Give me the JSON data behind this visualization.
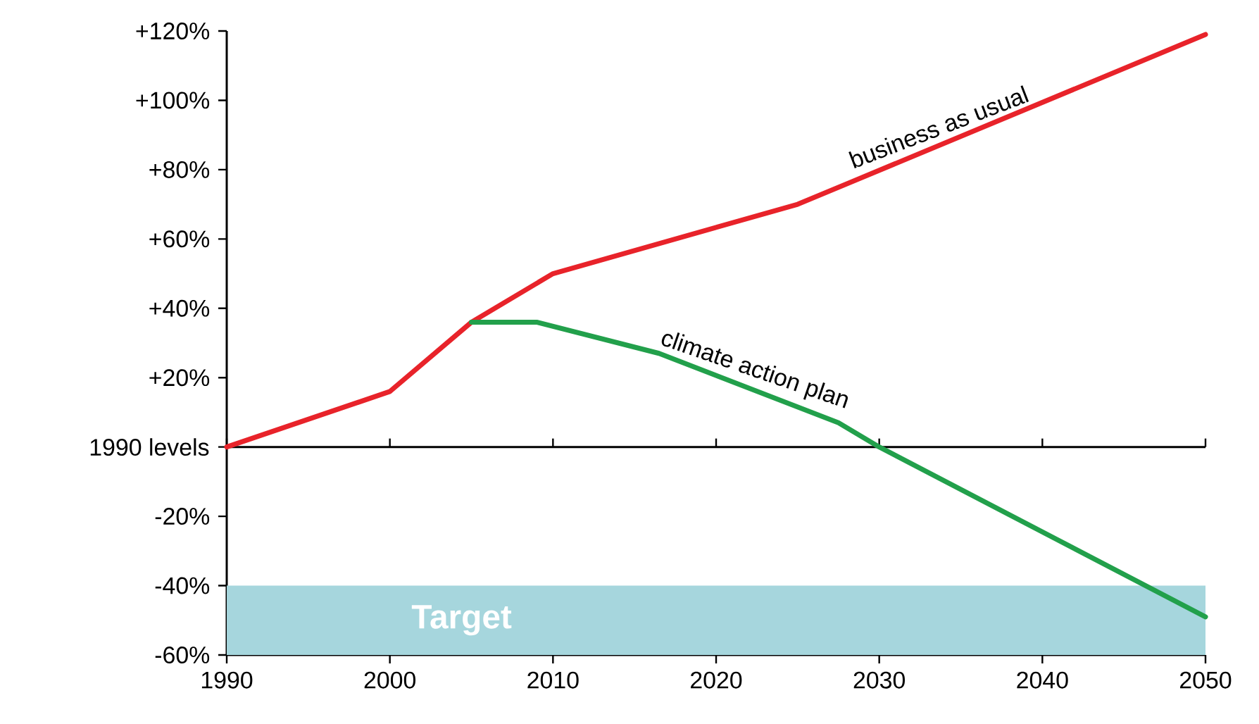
{
  "chart_data": {
    "type": "line",
    "xlim": [
      1990,
      2050
    ],
    "ylim": [
      -60,
      120
    ],
    "xticks": [
      1990,
      2000,
      2010,
      2020,
      2030,
      2040,
      2050
    ],
    "yticks": [
      {
        "value": -60,
        "label": "-60%"
      },
      {
        "value": -40,
        "label": "-40%"
      },
      {
        "value": -20,
        "label": "-20%"
      },
      {
        "value": 0,
        "label": null
      },
      {
        "value": 20,
        "label": "+20%"
      },
      {
        "value": 40,
        "label": "+40%"
      },
      {
        "value": 60,
        "label": "+60%"
      },
      {
        "value": 80,
        "label": "+80%"
      },
      {
        "value": 100,
        "label": "+100%"
      },
      {
        "value": 120,
        "label": "+120%"
      }
    ],
    "series": [
      {
        "color": "#e8232a",
        "x": [
          1990,
          2000,
          2005,
          2010,
          2025,
          2050
        ],
        "values": [
          0,
          16,
          36,
          50,
          70,
          119
        ]
      },
      {
        "color": "#22a04b",
        "x": [
          2005,
          2009,
          2016.5,
          2027.5,
          2030,
          2050
        ],
        "values": [
          36,
          36,
          27,
          7,
          0,
          -49
        ]
      }
    ],
    "ref_lines": [
      {
        "axis": "y",
        "value": 0,
        "color": "#000000",
        "label": "1990 levels"
      }
    ],
    "bands": [
      {
        "axis": "y",
        "from": -60,
        "to": -40,
        "label": "Target",
        "color": "#a6d6dd"
      }
    ],
    "annotations": [
      {
        "text": "business as usual",
        "x": 2034,
        "y": 88
      },
      {
        "text": "climate action plan",
        "x": 2022,
        "y": 17
      }
    ]
  }
}
